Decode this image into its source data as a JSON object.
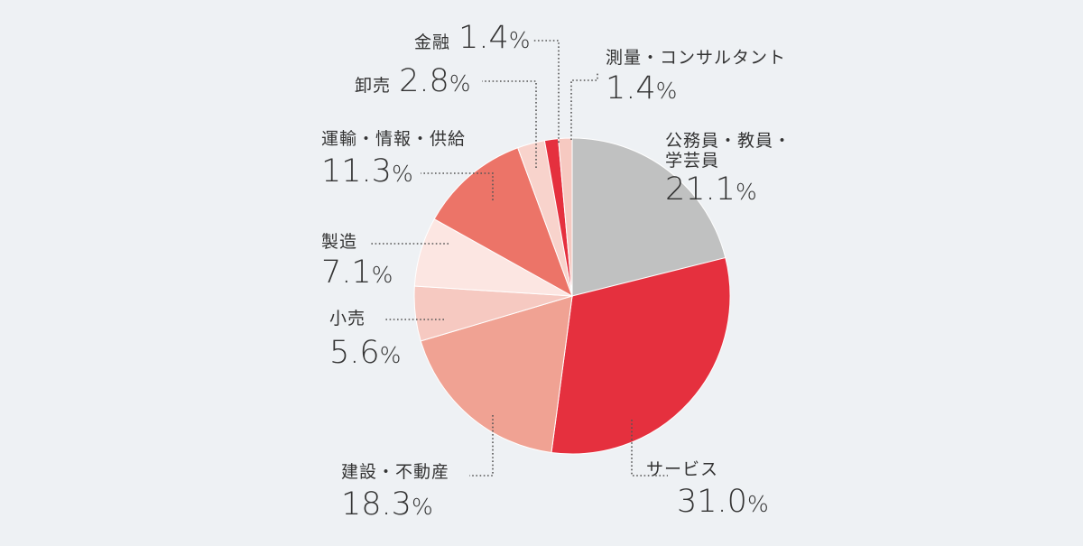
{
  "colors": {
    "background": "#eef1f4",
    "leader": "#555555",
    "slices": [
      "#c0c1c1",
      "#e5303e",
      "#f0a293",
      "#f6c9c1",
      "#fce6e2",
      "#ec7468",
      "#f8d3cc",
      "#e5303e",
      "#f6c9c1"
    ]
  },
  "chart_data": {
    "type": "pie",
    "start": "12 o'clock, clockwise",
    "unit": "%",
    "slices": [
      {
        "label": "公務員・教員・学芸員",
        "value": 21.1,
        "label_lines": [
          "公務員・教員・",
          "学芸員"
        ],
        "value_text": "21.1",
        "pct": "%"
      },
      {
        "label": "サービス",
        "value": 31.0,
        "label_lines": [
          "サービス"
        ],
        "value_text": "31.0",
        "pct": "%"
      },
      {
        "label": "建設・不動産",
        "value": 18.3,
        "label_lines": [
          "建設・不動産"
        ],
        "value_text": "18.3",
        "pct": "%"
      },
      {
        "label": "小売",
        "value": 5.6,
        "label_lines": [
          "小売"
        ],
        "value_text": "5.6",
        "pct": "%"
      },
      {
        "label": "製造",
        "value": 7.1,
        "label_lines": [
          "製造"
        ],
        "value_text": "7.1",
        "pct": "%"
      },
      {
        "label": "運輸・情報・供給",
        "value": 11.3,
        "label_lines": [
          "運輸・情報・供給"
        ],
        "value_text": "11.3",
        "pct": "%"
      },
      {
        "label": "卸売",
        "value": 2.8,
        "label_lines": [
          "卸売"
        ],
        "value_text": "2.8",
        "pct": "%"
      },
      {
        "label": "金融",
        "value": 1.4,
        "label_lines": [
          "金融"
        ],
        "value_text": "1.4",
        "pct": "%"
      },
      {
        "label": "測量・コンサルタント",
        "value": 1.4,
        "label_lines": [
          "測量・コンサルタント"
        ],
        "value_text": "1.4",
        "pct": "%"
      }
    ]
  }
}
